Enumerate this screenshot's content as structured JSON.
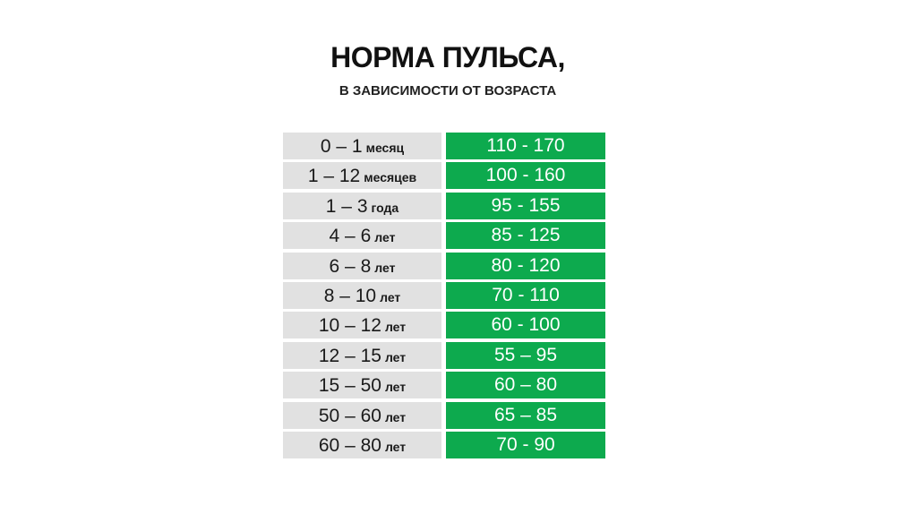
{
  "title": "НОРМА ПУЛЬСА,",
  "subtitle": "В ЗАВИСИМОСТИ ОТ ВОЗРАСТА",
  "colors": {
    "age_cell": "#e1e1e1",
    "pulse_cell": "#0daa4e"
  },
  "rows": [
    {
      "range": "0 – 1",
      "unit": "месяц",
      "pulse": "110 - 170"
    },
    {
      "range": "1 – 12",
      "unit": "месяцев",
      "pulse": "100 - 160"
    },
    {
      "range": "1 – 3",
      "unit": "года",
      "pulse": "95 - 155"
    },
    {
      "range": "4 – 6",
      "unit": "лет",
      "pulse": "85 - 125"
    },
    {
      "range": "6 – 8",
      "unit": "лет",
      "pulse": "80 - 120"
    },
    {
      "range": "8 – 10",
      "unit": "лет",
      "pulse": "70 - 110"
    },
    {
      "range": "10 – 12",
      "unit": "лет",
      "pulse": "60 - 100"
    },
    {
      "range": "12 – 15",
      "unit": "лет",
      "pulse": "55 – 95"
    },
    {
      "range": "15 – 50",
      "unit": "лет",
      "pulse": "60 – 80"
    },
    {
      "range": "50 – 60",
      "unit": "лет",
      "pulse": "65 – 85"
    },
    {
      "range": "60 – 80",
      "unit": "лет",
      "pulse": "70 - 90"
    }
  ]
}
